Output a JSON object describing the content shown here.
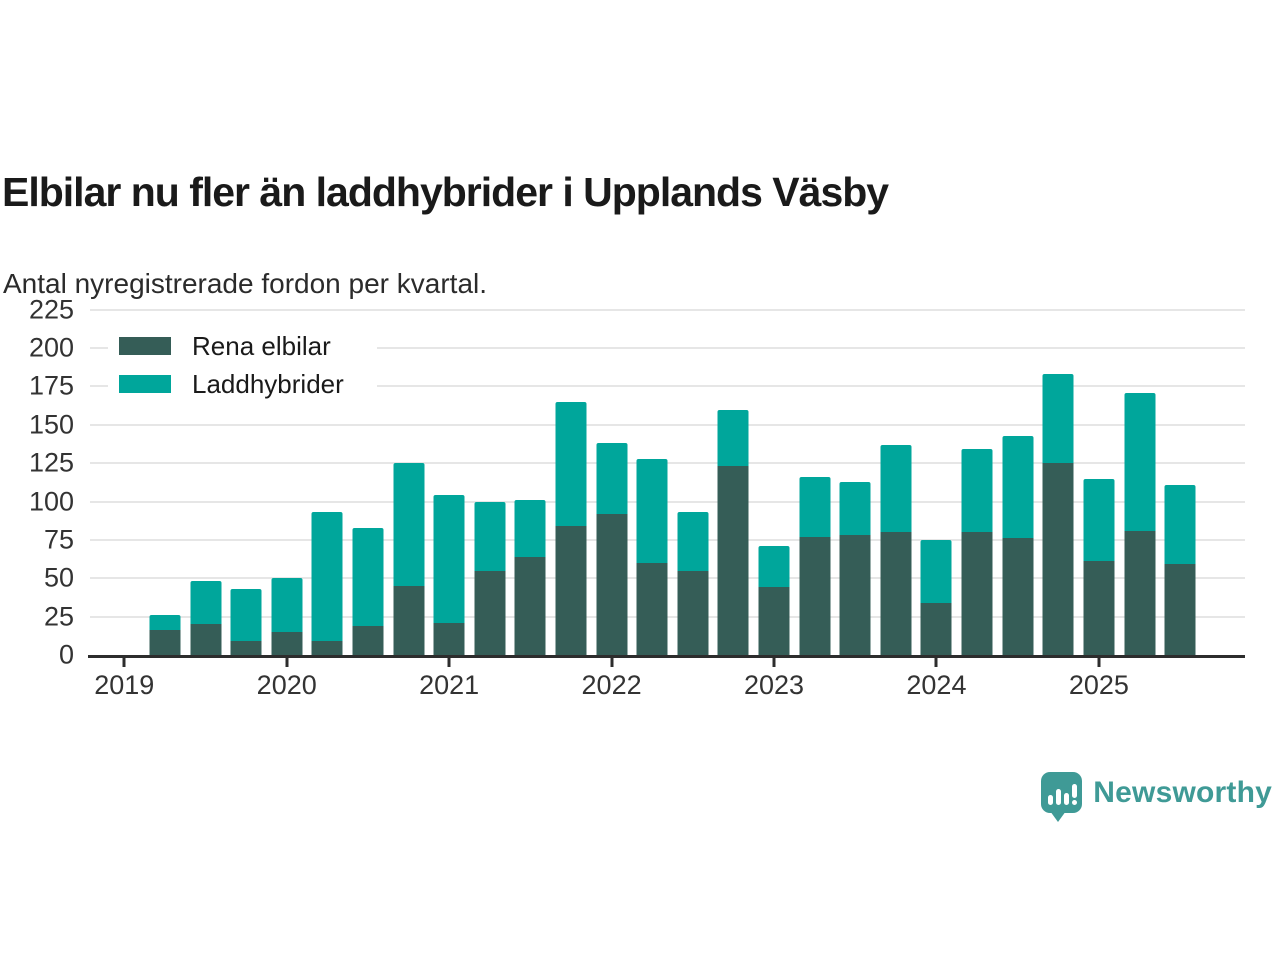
{
  "header": {
    "title": "Elbilar nu fler än laddhybrider i Upplands Väsby",
    "subtitle": "Antal nyregistrerade fordon per kvartal."
  },
  "chart_data": {
    "type": "bar",
    "stacked": true,
    "title": "Elbilar nu fler än laddhybrider i Upplands Väsby",
    "subtitle": "Antal nyregistrerade fordon per kvartal.",
    "categories": [
      "2019 Q2",
      "2019 Q3",
      "2019 Q4",
      "2020 Q1",
      "2020 Q2",
      "2020 Q3",
      "2020 Q4",
      "2021 Q1",
      "2021 Q2",
      "2021 Q3",
      "2021 Q4",
      "2022 Q1",
      "2022 Q2",
      "2022 Q3",
      "2022 Q4",
      "2023 Q1",
      "2023 Q2",
      "2023 Q3",
      "2023 Q4",
      "2024 Q1",
      "2024 Q2",
      "2024 Q3",
      "2024 Q4",
      "2025 Q1",
      "2025 Q2",
      "2025 Q3"
    ],
    "series": [
      {
        "name": "Rena elbilar",
        "color": "#355d57",
        "values": [
          16,
          20,
          9,
          15,
          9,
          19,
          45,
          21,
          55,
          64,
          84,
          92,
          60,
          55,
          123,
          44,
          77,
          78,
          80,
          34,
          80,
          76,
          125,
          61,
          81,
          59
        ]
      },
      {
        "name": "Laddhybrider",
        "color": "#00a69b",
        "values": [
          10,
          28,
          34,
          35,
          84,
          64,
          80,
          83,
          45,
          37,
          81,
          46,
          68,
          38,
          37,
          27,
          39,
          35,
          57,
          41,
          54,
          67,
          58,
          54,
          90,
          52
        ]
      }
    ],
    "x_tick_labels": [
      "2019",
      "2020",
      "2021",
      "2022",
      "2023",
      "2024",
      "2025"
    ],
    "y_ticks": [
      0,
      25,
      50,
      75,
      100,
      125,
      150,
      175,
      200,
      225
    ],
    "ylim": [
      0,
      232
    ],
    "grid": true,
    "legend_position": "top-left",
    "layout": {
      "total_slots": 28,
      "first_bar_slot": 1,
      "year_tick_slots": [
        0,
        4,
        8,
        12,
        16,
        20,
        24
      ]
    }
  },
  "footer": {
    "brand": "Newsworthy"
  },
  "colors": {
    "axis": "#2d2d2d",
    "grid": "#e6e6e6",
    "tick_text": "#333333",
    "title_text": "#1a1a1a",
    "brand": "#3f9a96"
  }
}
